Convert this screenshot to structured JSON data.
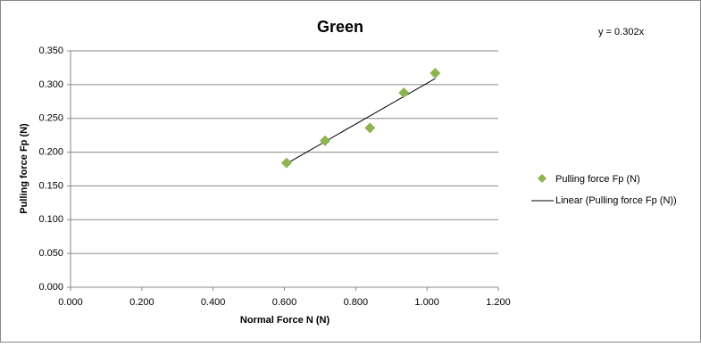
{
  "chart_data": {
    "type": "scatter",
    "title": "Green",
    "x_label": "Normal Force N (N)",
    "y_label": "Pulling force Fp (N)",
    "series": [
      {
        "name": "Pulling force Fp (N)",
        "color": "#8db551",
        "x": [
          0.606,
          0.714,
          0.84,
          0.935,
          1.023
        ],
        "values": [
          0.184,
          0.217,
          0.236,
          0.288,
          0.317
        ]
      }
    ],
    "trendline": {
      "name": "Linear (Pulling force Fp (N))",
      "label": "y = 0.302x",
      "slope": 0.302,
      "color": "#000000"
    },
    "xlim": [
      0,
      1.2
    ],
    "xticks": [
      {
        "value": 0,
        "label": "0.000"
      },
      {
        "value": 0.2,
        "label": "0.200"
      },
      {
        "value": 0.4,
        "label": "0.400"
      },
      {
        "value": 0.6,
        "label": "0.600"
      },
      {
        "value": 0.8,
        "label": "0.800"
      },
      {
        "value": 1.0,
        "label": "1.000"
      },
      {
        "value": 1.2,
        "label": "1.200"
      }
    ],
    "ylim": [
      0,
      0.35
    ],
    "yticks": [
      {
        "value": 0,
        "label": "0.000"
      },
      {
        "value": 0.05,
        "label": "0.050"
      },
      {
        "value": 0.1,
        "label": "0.100"
      },
      {
        "value": 0.15,
        "label": "0.150"
      },
      {
        "value": 0.2,
        "label": "0.200"
      },
      {
        "value": 0.25,
        "label": "0.250"
      },
      {
        "value": 0.3,
        "label": "0.300"
      },
      {
        "value": 0.35,
        "label": "0.350"
      }
    ],
    "grid": true,
    "legend": "right"
  }
}
